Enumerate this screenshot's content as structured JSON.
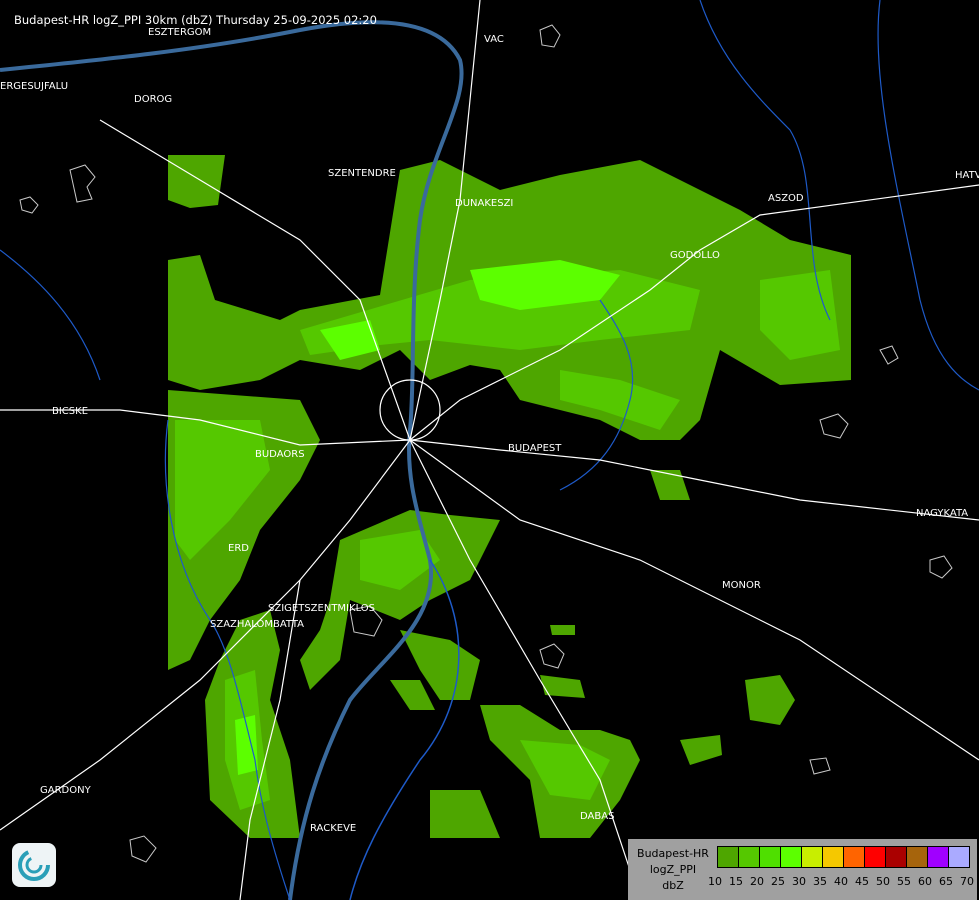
{
  "header": {
    "title": "Budapest-HR logZ_PPI 30km (dbZ) Thursday 25-09-2025 02:20"
  },
  "cities": [
    {
      "name": "ESZTERGOM"
    },
    {
      "name": "VAC"
    },
    {
      "name": "ERGESUJFALU"
    },
    {
      "name": "DOROG"
    },
    {
      "name": "SZENTENDRE"
    },
    {
      "name": "DUNAKESZI"
    },
    {
      "name": "ASZOD"
    },
    {
      "name": "HATV"
    },
    {
      "name": "GODOLLO"
    },
    {
      "name": "BICSKE"
    },
    {
      "name": "BUDAORS"
    },
    {
      "name": "BUDAPEST"
    },
    {
      "name": "NAGYKATA"
    },
    {
      "name": "ERD"
    },
    {
      "name": "MONOR"
    },
    {
      "name": "SZIGETSZENTMIKLOS"
    },
    {
      "name": "SZAZHALOMBATTA"
    },
    {
      "name": "GARDONY"
    },
    {
      "name": "RACKEVE"
    },
    {
      "name": "DABAS"
    }
  ],
  "legend": {
    "line1": "Budapest-HR",
    "line2": "logZ_PPI",
    "line3": "dbZ",
    "ticks": [
      "10",
      "15",
      "20",
      "25",
      "30",
      "35",
      "40",
      "45",
      "50",
      "55",
      "60",
      "65",
      "70"
    ],
    "colors": [
      "#4ea600",
      "#55c800",
      "#4fdf00",
      "#5cff00",
      "#c8ee00",
      "#f5c800",
      "#ff6400",
      "#ff0000",
      "#aa0000",
      "#a6640c",
      "#a000ff",
      "#aaaaff"
    ]
  },
  "logo": {
    "icon": "weather-service-swirl-logo"
  }
}
